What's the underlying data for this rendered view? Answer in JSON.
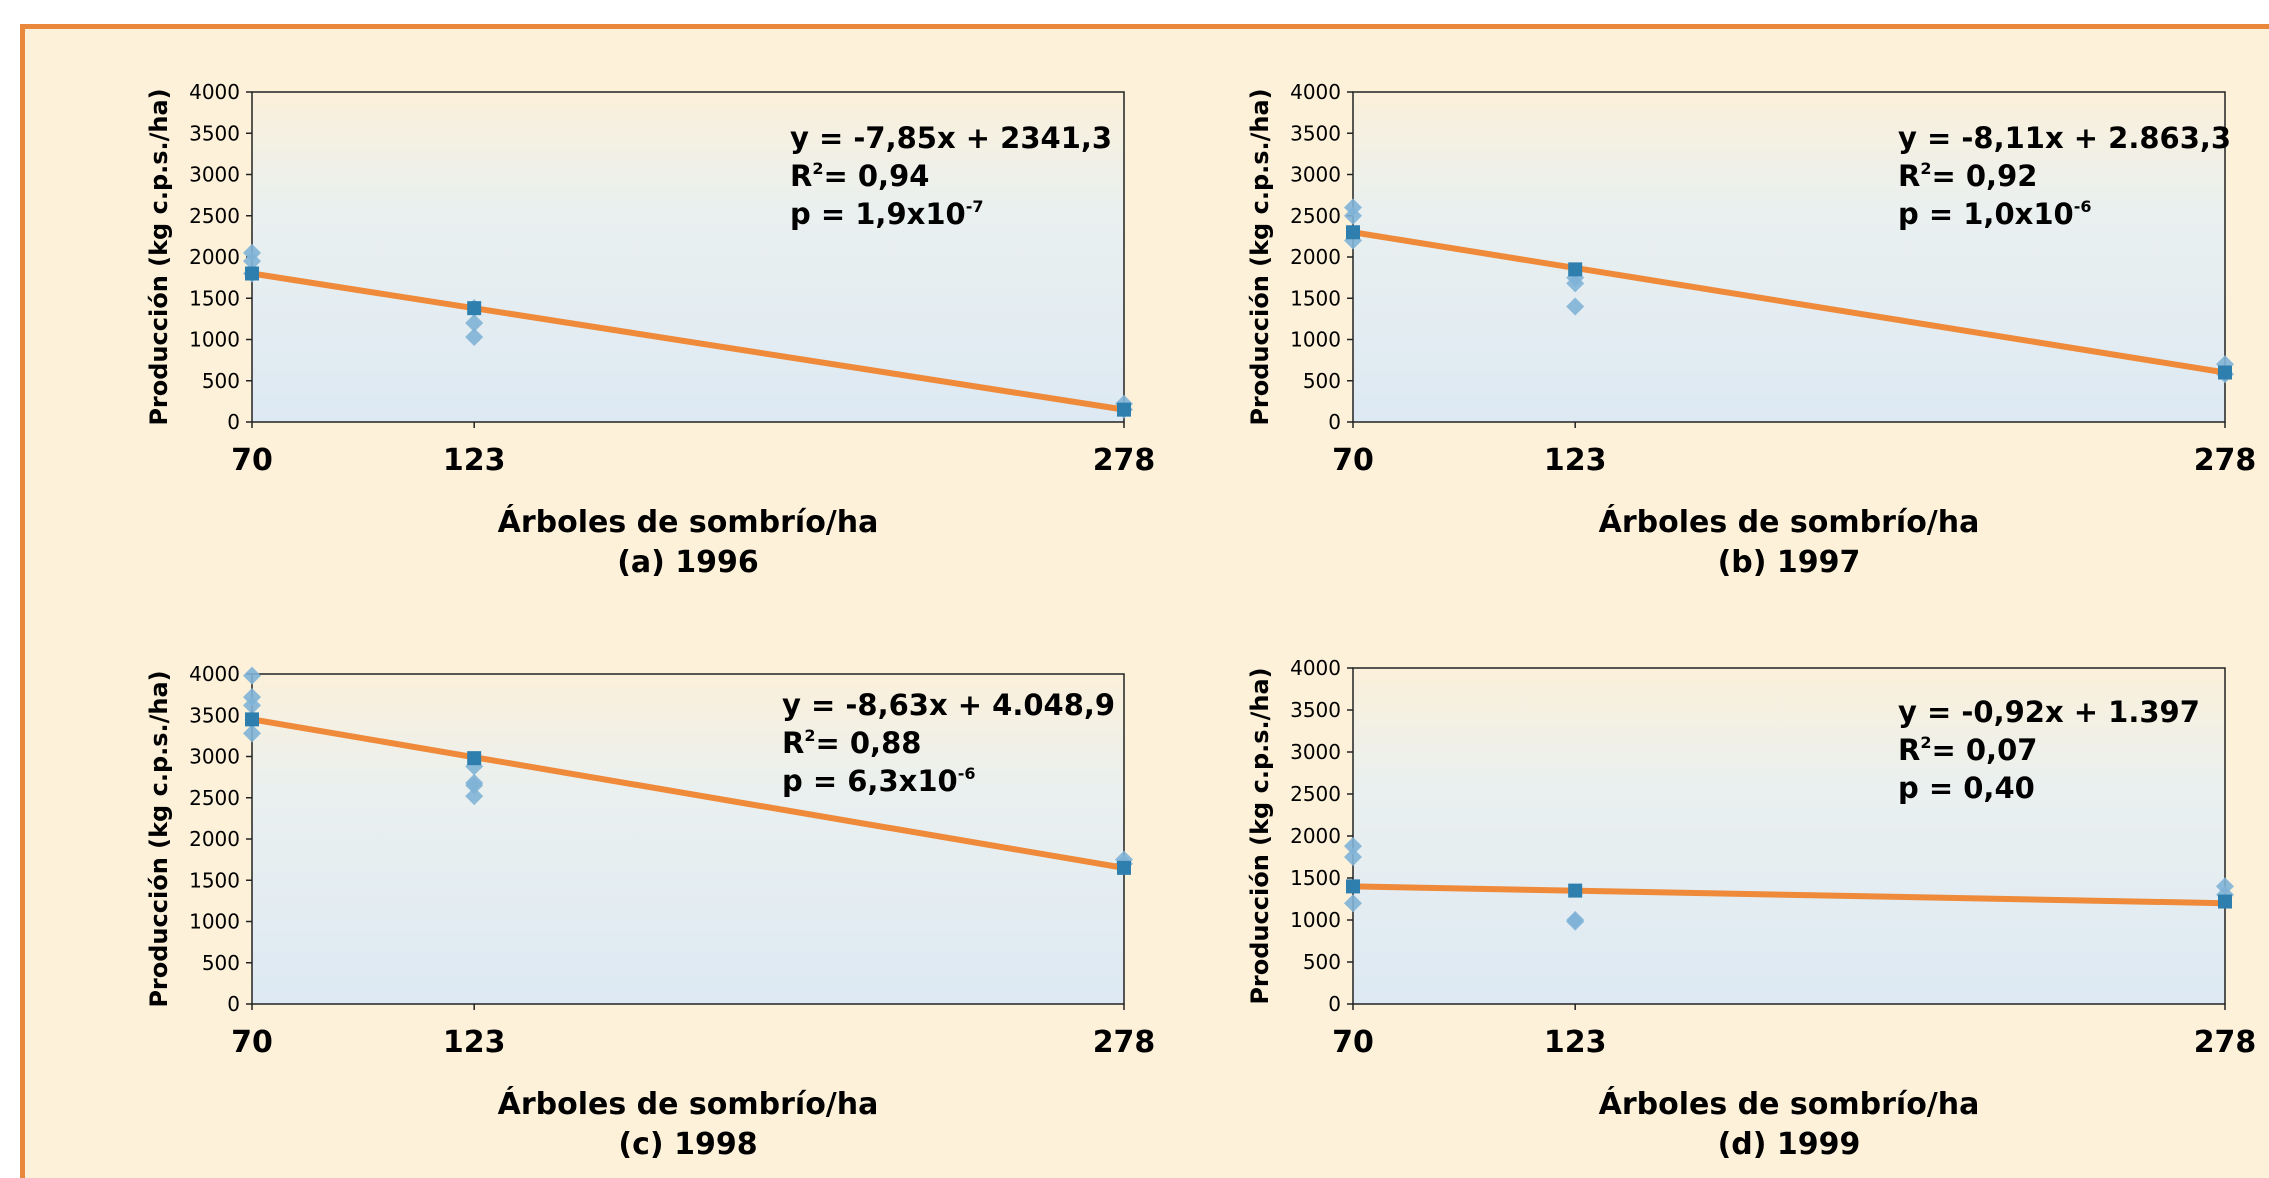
{
  "colors": {
    "background": "#fdf1da",
    "border": "#e9883a",
    "trend_line": "#ee8a3a",
    "observed_marker": "#7fb2d6",
    "mean_marker": "#2f7fae"
  },
  "chart_data": [
    {
      "type": "scatter",
      "caption": "(a) 1996",
      "xlabel": "Árboles de sombrío/ha",
      "ylabel": "Producción (kg c.p.s./ha)",
      "x_ticks": [
        "70",
        "123",
        "278"
      ],
      "xlim": [
        70,
        278
      ],
      "ylim": [
        0,
        4000
      ],
      "y_ticks": [
        "0",
        "500",
        "1000",
        "1500",
        "2000",
        "2500",
        "3000",
        "3500",
        "4000"
      ],
      "equation": {
        "line1": "y = -7,85x + 2341,3",
        "r2_prefix": "R",
        "r2_exp": "2",
        "r2_suffix": "= 0,94",
        "p_prefix": "p = 1,9x10",
        "p_exp": "-7"
      },
      "observed": [
        {
          "x": 70,
          "y": 2050
        },
        {
          "x": 70,
          "y": 1950
        },
        {
          "x": 70,
          "y": 1800
        },
        {
          "x": 123,
          "y": 1200
        },
        {
          "x": 123,
          "y": 1030
        },
        {
          "x": 123,
          "y": 1380
        },
        {
          "x": 278,
          "y": 220
        },
        {
          "x": 278,
          "y": 150
        }
      ],
      "means": [
        {
          "x": 70,
          "y": 1800
        },
        {
          "x": 123,
          "y": 1380
        },
        {
          "x": 278,
          "y": 150
        }
      ],
      "trend": [
        {
          "x": 70,
          "y": 1800
        },
        {
          "x": 278,
          "y": 150
        }
      ]
    },
    {
      "type": "scatter",
      "caption": "(b) 1997",
      "xlabel": "Árboles de sombrío/ha",
      "ylabel": "Producción (kg c.p.s./ha)",
      "x_ticks": [
        "70",
        "123",
        "278"
      ],
      "xlim": [
        70,
        278
      ],
      "ylim": [
        0,
        4000
      ],
      "y_ticks": [
        "0",
        "500",
        "1000",
        "1500",
        "2000",
        "2500",
        "3000",
        "3500",
        "4000"
      ],
      "equation": {
        "line1": "y = -8,11x + 2.863,3",
        "r2_prefix": "R",
        "r2_exp": "2",
        "r2_suffix": "= 0,92",
        "p_prefix": "p = 1,0x10",
        "p_exp": "-6"
      },
      "observed": [
        {
          "x": 70,
          "y": 2600
        },
        {
          "x": 70,
          "y": 2500
        },
        {
          "x": 70,
          "y": 2200
        },
        {
          "x": 123,
          "y": 1750
        },
        {
          "x": 123,
          "y": 1680
        },
        {
          "x": 123,
          "y": 1400
        },
        {
          "x": 278,
          "y": 700
        },
        {
          "x": 278,
          "y": 580
        }
      ],
      "means": [
        {
          "x": 70,
          "y": 2300
        },
        {
          "x": 123,
          "y": 1850
        },
        {
          "x": 278,
          "y": 600
        }
      ],
      "trend": [
        {
          "x": 70,
          "y": 2300
        },
        {
          "x": 278,
          "y": 600
        }
      ]
    },
    {
      "type": "scatter",
      "caption": "(c) 1998",
      "xlabel": "Árboles de sombrío/ha",
      "ylabel": "Producción (kg c.p.s./ha)",
      "x_ticks": [
        "70",
        "123",
        "278"
      ],
      "xlim": [
        70,
        278
      ],
      "ylim": [
        0,
        4000
      ],
      "y_ticks": [
        "0",
        "500",
        "1000",
        "1500",
        "2000",
        "2500",
        "3000",
        "3500",
        "4000"
      ],
      "equation": {
        "line1": "y = -8,63x + 4.048,9",
        "r2_prefix": "R",
        "r2_exp": "2",
        "r2_suffix": "= 0,88",
        "p_prefix": "p = 6,3x10",
        "p_exp": "-6"
      },
      "observed": [
        {
          "x": 70,
          "y": 3980
        },
        {
          "x": 70,
          "y": 3720
        },
        {
          "x": 70,
          "y": 3620
        },
        {
          "x": 70,
          "y": 3280
        },
        {
          "x": 123,
          "y": 2880
        },
        {
          "x": 123,
          "y": 2680
        },
        {
          "x": 123,
          "y": 2650
        },
        {
          "x": 123,
          "y": 2520
        },
        {
          "x": 278,
          "y": 1750
        },
        {
          "x": 278,
          "y": 1700
        }
      ],
      "means": [
        {
          "x": 70,
          "y": 3450
        },
        {
          "x": 123,
          "y": 2980
        },
        {
          "x": 278,
          "y": 1650
        }
      ],
      "trend": [
        {
          "x": 70,
          "y": 3450
        },
        {
          "x": 278,
          "y": 1650
        }
      ]
    },
    {
      "type": "scatter",
      "caption": "(d) 1999",
      "xlabel": "Árboles de sombrío/ha",
      "ylabel": "Producción (kg c.p.s./ha)",
      "x_ticks": [
        "70",
        "123",
        "278"
      ],
      "xlim": [
        70,
        278
      ],
      "ylim": [
        0,
        4000
      ],
      "y_ticks": [
        "0",
        "500",
        "1000",
        "1500",
        "2000",
        "2500",
        "3000",
        "3500",
        "4000"
      ],
      "equation": {
        "line1": "y = -0,92x + 1.397",
        "r2_prefix": "R",
        "r2_exp": "2",
        "r2_suffix": "= 0,07",
        "p_prefix": "",
        "p_exp": "",
        "p_plain": "p = 0,40"
      },
      "observed": [
        {
          "x": 70,
          "y": 1880
        },
        {
          "x": 70,
          "y": 1750
        },
        {
          "x": 70,
          "y": 1200
        },
        {
          "x": 123,
          "y": 1000
        },
        {
          "x": 123,
          "y": 980
        },
        {
          "x": 278,
          "y": 1400
        },
        {
          "x": 278,
          "y": 1300
        }
      ],
      "means": [
        {
          "x": 70,
          "y": 1400
        },
        {
          "x": 123,
          "y": 1350
        },
        {
          "x": 278,
          "y": 1220
        }
      ],
      "trend": [
        {
          "x": 70,
          "y": 1400
        },
        {
          "x": 278,
          "y": 1200
        }
      ]
    }
  ]
}
